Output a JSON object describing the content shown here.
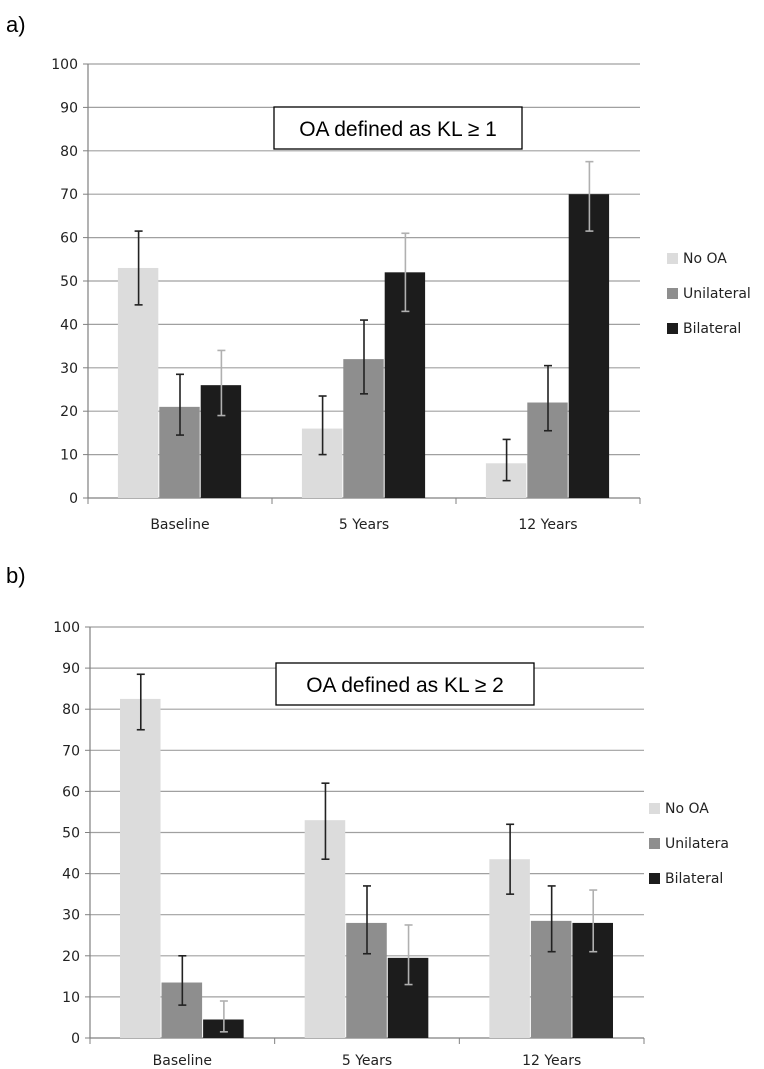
{
  "colors": {
    "no_oa": "#dcdcdc",
    "unilateral": "#8e8e8e",
    "bilateral": "#1c1c1c",
    "grid": "#a0a0a0",
    "axis": "#808080",
    "error_dark": "#222222",
    "error_light": "#b0b0b0"
  },
  "chart_data": [
    {
      "type": "bar",
      "panel_label": "a)",
      "annotation": "OA defined as KL ≥ 1",
      "categories": [
        "Baseline",
        "5 Years",
        "12 Years"
      ],
      "ylim": [
        0,
        100
      ],
      "yticks": [
        0,
        10,
        20,
        30,
        40,
        50,
        60,
        70,
        80,
        90,
        100
      ],
      "grid": true,
      "legend_position": "right",
      "series": [
        {
          "name": "No OA",
          "color_key": "no_oa",
          "errorbar_color_key": "error_dark",
          "values": [
            53,
            16,
            8
          ],
          "err_low": [
            44.5,
            10,
            4
          ],
          "err_high": [
            61.5,
            23.5,
            13.5
          ]
        },
        {
          "name": "Unilateral",
          "color_key": "unilateral",
          "errorbar_color_key": "error_dark",
          "values": [
            21,
            32,
            22
          ],
          "err_low": [
            14.5,
            24,
            15.5
          ],
          "err_high": [
            28.5,
            41,
            30.5
          ]
        },
        {
          "name": "Bilateral",
          "color_key": "bilateral",
          "errorbar_color_key": "error_light",
          "values": [
            26,
            52,
            70
          ],
          "err_low": [
            19,
            43,
            61.5
          ],
          "err_high": [
            34,
            61,
            77.5
          ]
        }
      ]
    },
    {
      "type": "bar",
      "panel_label": "b)",
      "annotation": "OA defined as KL ≥ 2",
      "categories": [
        "Baseline",
        "5 Years",
        "12 Years"
      ],
      "ylim": [
        0,
        100
      ],
      "yticks": [
        0,
        10,
        20,
        30,
        40,
        50,
        60,
        70,
        80,
        90,
        100
      ],
      "grid": true,
      "legend_position": "right",
      "series": [
        {
          "name": "No OA",
          "color_key": "no_oa",
          "errorbar_color_key": "error_dark",
          "values": [
            82.5,
            53,
            43.5
          ],
          "err_low": [
            75,
            43.5,
            35
          ],
          "err_high": [
            88.5,
            62,
            52
          ]
        },
        {
          "name": "Unilatera",
          "color_key": "unilateral",
          "errorbar_color_key": "error_dark",
          "values": [
            13.5,
            28,
            28.5
          ],
          "err_low": [
            8,
            20.5,
            21
          ],
          "err_high": [
            20,
            37,
            37
          ]
        },
        {
          "name": "Bilateral",
          "color_key": "bilateral",
          "errorbar_color_key": "error_light",
          "values": [
            4.5,
            19.5,
            28
          ],
          "err_low": [
            1.5,
            13,
            21
          ],
          "err_high": [
            9,
            27.5,
            36
          ]
        }
      ]
    }
  ]
}
